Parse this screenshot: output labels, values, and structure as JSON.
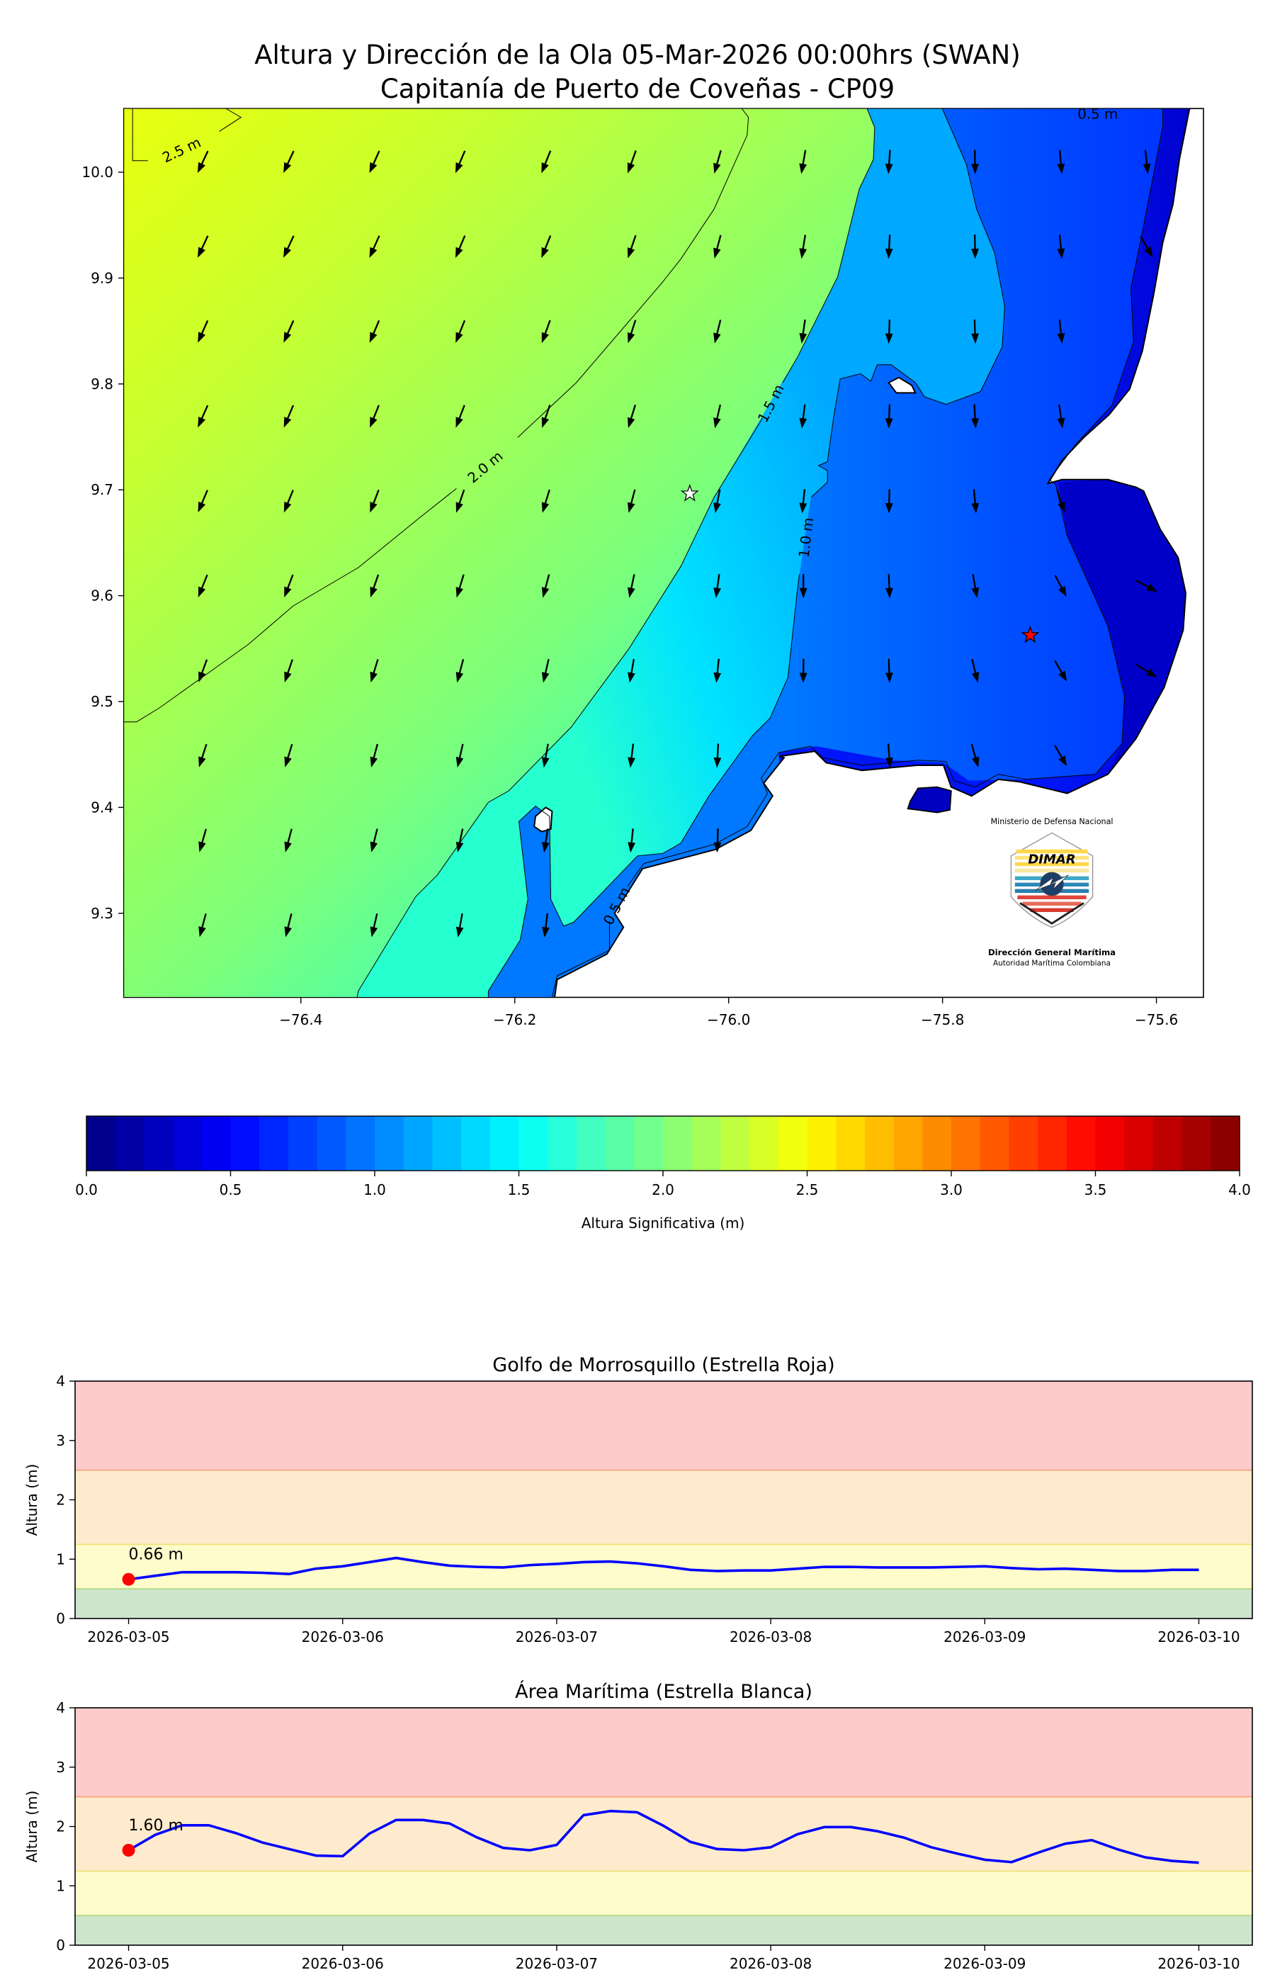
{
  "title": {
    "line1": "Altura y Dirección de la Ola 05-Mar-2026 00:00hrs (SWAN)",
    "line2": "Capitanía de Puerto de Coveñas - CP09"
  },
  "map": {
    "x_ticks": [
      {
        "value": -76.4,
        "label": "−76.4"
      },
      {
        "value": -76.2,
        "label": "−76.2"
      },
      {
        "value": -76.0,
        "label": "−76.0"
      },
      {
        "value": -75.8,
        "label": "−75.8"
      },
      {
        "value": -75.6,
        "label": "−75.6"
      }
    ],
    "y_ticks": [
      {
        "value": 10.0,
        "label": "10.0"
      },
      {
        "value": 9.9,
        "label": "9.9"
      },
      {
        "value": 9.8,
        "label": "9.8"
      },
      {
        "value": 9.7,
        "label": "9.7"
      },
      {
        "value": 9.6,
        "label": "9.6"
      },
      {
        "value": 9.5,
        "label": "9.5"
      },
      {
        "value": 9.4,
        "label": "9.4"
      },
      {
        "value": 9.3,
        "label": "9.3"
      }
    ],
    "contour_labels": {
      "c25": "2.5 m",
      "c20": "2.0 m",
      "c15": "1.5 m",
      "c10": "1.0 m",
      "c05": "0.5 m",
      "c05b": "0.5 m"
    },
    "wave_direction_deg": [
      [
        205,
        205,
        204,
        203,
        202,
        200,
        196,
        190,
        184,
        179,
        175,
        174
      ],
      [
        205,
        205,
        204,
        203,
        202,
        199,
        195,
        189,
        183,
        179,
        175,
        150
      ],
      [
        204,
        204,
        203,
        202,
        200,
        198,
        194,
        188,
        182,
        178,
        174,
        null
      ],
      [
        204,
        203,
        202,
        201,
        199,
        197,
        193,
        187,
        182,
        177,
        172,
        null
      ],
      [
        203,
        202,
        201,
        199,
        197,
        195,
        191,
        186,
        181,
        175,
        162,
        null
      ],
      [
        202,
        201,
        199,
        197,
        195,
        192,
        188,
        180,
        178,
        170,
        152,
        118
      ],
      [
        200,
        199,
        197,
        195,
        193,
        190,
        186,
        181,
        178,
        166,
        150,
        122
      ],
      [
        198,
        197,
        195,
        193,
        190,
        187,
        183,
        null,
        176,
        164,
        150,
        null
      ],
      [
        196,
        195,
        194,
        192,
        189,
        186,
        182,
        null,
        null,
        null,
        null,
        null
      ],
      [
        195,
        194,
        193,
        190,
        187,
        null,
        null,
        null,
        null,
        null,
        null,
        null
      ]
    ],
    "accent_colors": {
      "white_star": "#ffffff",
      "red_star": "#ff0000"
    }
  },
  "logo": {
    "ministry": "Ministerio de Defensa Nacional",
    "brand": "DIMAR",
    "org": "Dirección General Marítima",
    "tagline": "Autoridad Marítima Colombiana"
  },
  "colorbar": {
    "label": "Altura Significativa (m)",
    "range": [
      0,
      4
    ],
    "levels": 40,
    "colormap": "jet",
    "ticks": [
      {
        "value": 0,
        "label": "0.0"
      },
      {
        "value": 0.5,
        "label": "0.5"
      },
      {
        "value": 1,
        "label": "1.0"
      },
      {
        "value": 1.5,
        "label": "1.5"
      },
      {
        "value": 2,
        "label": "2.0"
      },
      {
        "value": 2.5,
        "label": "2.5"
      },
      {
        "value": 3,
        "label": "3.0"
      },
      {
        "value": 3.5,
        "label": "3.5"
      },
      {
        "value": 4,
        "label": "4.0"
      }
    ]
  },
  "chart_data": [
    {
      "type": "line",
      "title": "Golfo de Morrosquillo (Estrella Roja)",
      "ylabel": "Altura (m)",
      "xlabel": "",
      "ylim": [
        0,
        4
      ],
      "yticks": [
        "0",
        "1",
        "2",
        "3",
        "4"
      ],
      "x_start": "2026-03-05 00:00",
      "x_step_hours": 3,
      "xticks": [
        "2026-03-05",
        "2026-03-06",
        "2026-03-07",
        "2026-03-08",
        "2026-03-09",
        "2026-03-10"
      ],
      "thresholds": [
        {
          "from": 0,
          "to": 0.5,
          "color": "#cde5cd",
          "edge": "#b5d98a"
        },
        {
          "from": 0.5,
          "to": 1.25,
          "color": "#fefccb",
          "edge": "#f2e27f"
        },
        {
          "from": 1.25,
          "to": 2.5,
          "color": "#feebcd",
          "edge": "#f6a989"
        },
        {
          "from": 2.5,
          "to": 4,
          "color": "#fecbcb",
          "edge": "#000000"
        }
      ],
      "series": [
        {
          "name": "Altura",
          "color": "#0000ff",
          "values": [
            0.66,
            0.72,
            0.78,
            0.78,
            0.78,
            0.77,
            0.75,
            0.84,
            0.88,
            0.95,
            1.02,
            0.95,
            0.89,
            0.87,
            0.86,
            0.9,
            0.92,
            0.95,
            0.96,
            0.93,
            0.88,
            0.82,
            0.8,
            0.81,
            0.81,
            0.84,
            0.87,
            0.87,
            0.86,
            0.86,
            0.86,
            0.87,
            0.88,
            0.85,
            0.83,
            0.84,
            0.82,
            0.8,
            0.8,
            0.82,
            0.82
          ]
        }
      ],
      "current": {
        "value": 0.66,
        "label": "0.66 m",
        "color": "#ff0000"
      }
    },
    {
      "type": "line",
      "title": "Área Marítima (Estrella Blanca)",
      "ylabel": "Altura (m)",
      "xlabel": "",
      "ylim": [
        0,
        4
      ],
      "yticks": [
        "0",
        "1",
        "2",
        "3",
        "4"
      ],
      "x_start": "2026-03-05 00:00",
      "x_step_hours": 3,
      "xticks": [
        "2026-03-05",
        "2026-03-06",
        "2026-03-07",
        "2026-03-08",
        "2026-03-09",
        "2026-03-10"
      ],
      "thresholds": [
        {
          "from": 0,
          "to": 0.5,
          "color": "#cde5cd",
          "edge": "#b5d98a"
        },
        {
          "from": 0.5,
          "to": 1.25,
          "color": "#fefccb",
          "edge": "#f2e27f"
        },
        {
          "from": 1.25,
          "to": 2.5,
          "color": "#feebcd",
          "edge": "#f6a989"
        },
        {
          "from": 2.5,
          "to": 4,
          "color": "#fecbcb",
          "edge": "#000000"
        }
      ],
      "series": [
        {
          "name": "Altura",
          "color": "#0000ff",
          "values": [
            1.6,
            1.86,
            2.02,
            2.02,
            1.89,
            1.73,
            1.62,
            1.51,
            1.5,
            1.88,
            2.11,
            2.11,
            2.05,
            1.82,
            1.64,
            1.6,
            1.69,
            2.19,
            2.26,
            2.24,
            2.01,
            1.74,
            1.62,
            1.6,
            1.65,
            1.87,
            1.99,
            1.99,
            1.92,
            1.81,
            1.65,
            1.54,
            1.44,
            1.4,
            1.56,
            1.71,
            1.77,
            1.61,
            1.48,
            1.42,
            1.39
          ]
        }
      ],
      "current": {
        "value": 1.6,
        "label": "1.60 m",
        "color": "#ff0000"
      }
    }
  ]
}
